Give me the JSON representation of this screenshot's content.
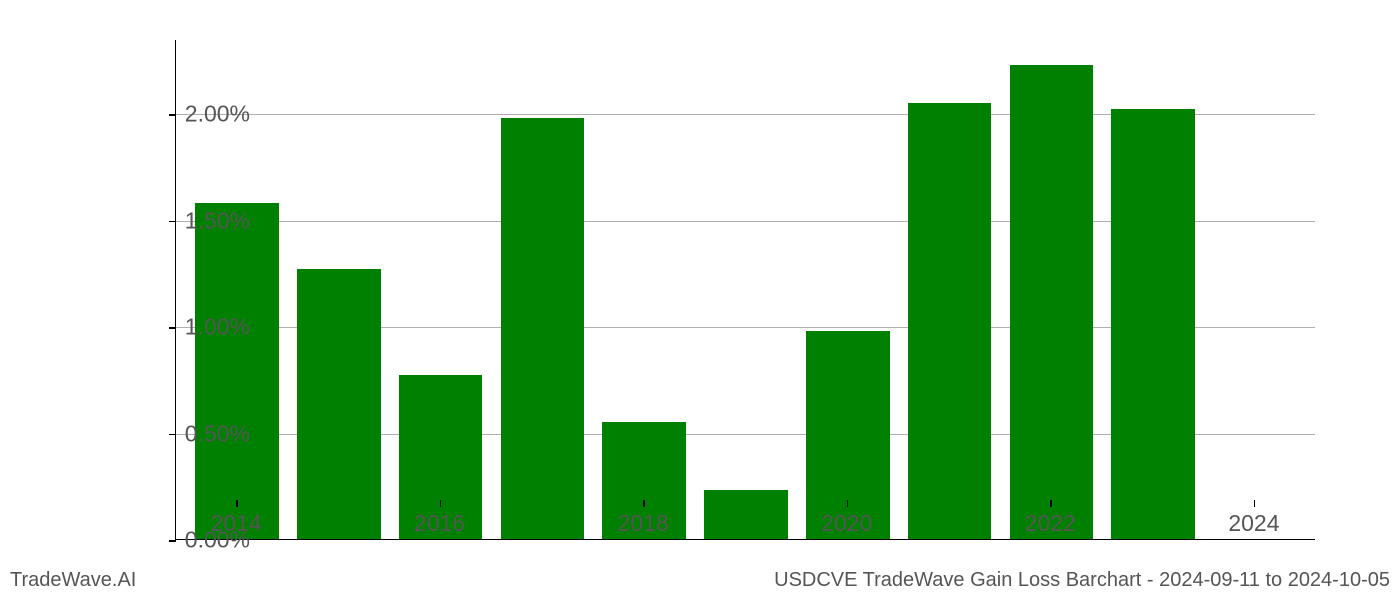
{
  "chart": {
    "type": "bar",
    "years": [
      2014,
      2015,
      2016,
      2017,
      2018,
      2019,
      2020,
      2021,
      2022,
      2023,
      2024
    ],
    "values": [
      1.58,
      1.27,
      0.77,
      1.98,
      0.55,
      0.23,
      0.98,
      2.05,
      2.23,
      2.02,
      0.0
    ],
    "bar_color": "#008000",
    "background_color": "#ffffff",
    "grid_color": "#b0b0b0",
    "axis_color": "#000000",
    "tick_label_color": "#555555",
    "y_ticks": [
      {
        "value": 0.0,
        "label": "0.00%"
      },
      {
        "value": 0.5,
        "label": "0.50%"
      },
      {
        "value": 1.0,
        "label": "1.00%"
      },
      {
        "value": 1.5,
        "label": "1.50%"
      },
      {
        "value": 2.0,
        "label": "2.00%"
      }
    ],
    "x_tick_labels": [
      "2014",
      "2016",
      "2018",
      "2020",
      "2022",
      "2024"
    ],
    "x_tick_years": [
      2014,
      2016,
      2018,
      2020,
      2022,
      2024
    ],
    "ylim_min": 0.0,
    "ylim_max": 2.35,
    "xlim_min": 2013.4,
    "xlim_max": 2024.6,
    "bar_width_years": 0.82,
    "tick_fontsize": 23,
    "footer_fontsize": 20
  },
  "footer": {
    "left": "TradeWave.AI",
    "right": "USDCVE TradeWave Gain Loss Barchart - 2024-09-11 to 2024-10-05"
  }
}
